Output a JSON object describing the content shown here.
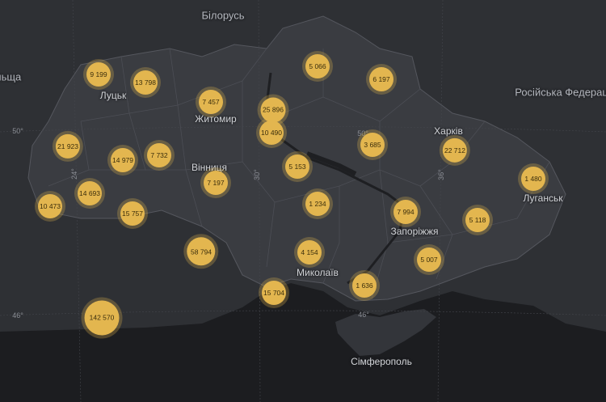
{
  "map": {
    "countries": [
      {
        "name": "Білорусь"
      },
      {
        "name": "Російська Федерація"
      },
      {
        "name": "Польща"
      }
    ],
    "cities": [
      "Луцьк",
      "Житомир",
      "Вінниця",
      "Харків",
      "Луганськ",
      "Запоріжжя",
      "Миколаїв",
      "Сімферополь"
    ],
    "grid_labels": [
      "50°",
      "50°",
      "46°",
      "46°",
      "24°",
      "30°",
      "36°"
    ],
    "markers": [
      {
        "region": "Volyn",
        "value": "9 199"
      },
      {
        "region": "Rivne",
        "value": "13 798"
      },
      {
        "region": "Zhytomyr",
        "value": "7 457"
      },
      {
        "region": "Kyiv city",
        "value": "25 896"
      },
      {
        "region": "Kyiv oblast",
        "value": "10 490"
      },
      {
        "region": "Chernihiv",
        "value": "5 066"
      },
      {
        "region": "Sumy",
        "value": "6 197"
      },
      {
        "region": "Lviv",
        "value": "21 923"
      },
      {
        "region": "Ternopil",
        "value": "14 979"
      },
      {
        "region": "Khmelnytskyi",
        "value": "7 732"
      },
      {
        "region": "Vinnytsia",
        "value": "7 197"
      },
      {
        "region": "Cherkasy",
        "value": "5 153"
      },
      {
        "region": "Poltava",
        "value": "3 685"
      },
      {
        "region": "Kharkiv",
        "value": "22 712"
      },
      {
        "region": "Luhansk",
        "value": "1 480"
      },
      {
        "region": "Zakarpattia",
        "value": "10 473"
      },
      {
        "region": "Ivano-Frankivsk",
        "value": "14 693"
      },
      {
        "region": "Chernivtsi",
        "value": "15 757"
      },
      {
        "region": "Kirovohrad",
        "value": "1 234"
      },
      {
        "region": "Dnipropetrovsk",
        "value": "7 994"
      },
      {
        "region": "Donetsk",
        "value": "5 118"
      },
      {
        "region": "Moldova",
        "value": "58 794"
      },
      {
        "region": "Mykolaiv",
        "value": "4 154"
      },
      {
        "region": "Zaporizhzhia",
        "value": "5 007"
      },
      {
        "region": "Odesa",
        "value": "15 704"
      },
      {
        "region": "Kherson",
        "value": "1 636"
      },
      {
        "region": "Romania",
        "value": "142 570"
      }
    ],
    "colors": {
      "background": "#25262a",
      "land": "#34363b",
      "ukraine": "#3b3d42",
      "sea": "#1c1d20",
      "border": "#4e5057",
      "marker": "#e3b64f"
    }
  }
}
